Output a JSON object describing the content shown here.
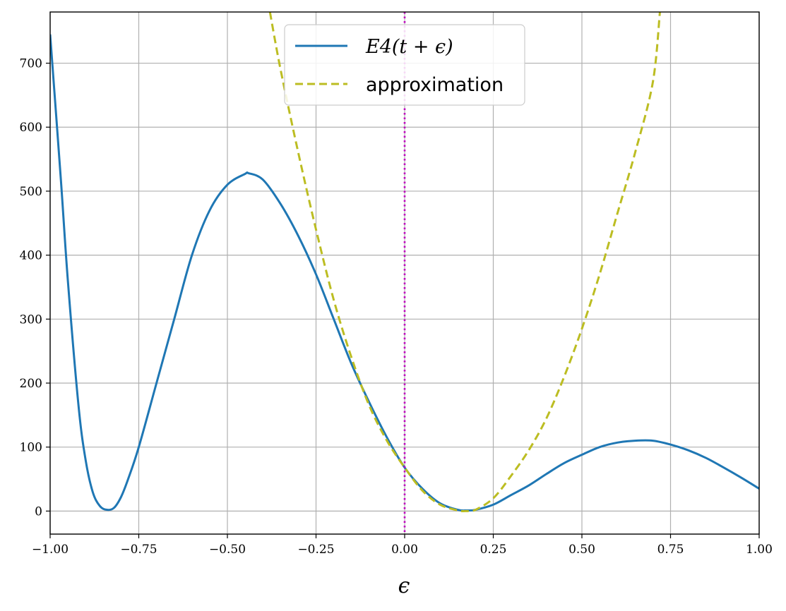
{
  "chart_data": {
    "type": "line",
    "title": "",
    "xlabel": "ϵ",
    "ylabel": "",
    "xlim": [
      -1.0,
      1.0
    ],
    "ylim": [
      -36,
      780
    ],
    "grid": true,
    "legend_position": "top-center",
    "x_ticks": [
      -1.0,
      -0.75,
      -0.5,
      -0.25,
      0.0,
      0.25,
      0.5,
      0.75,
      1.0
    ],
    "x_tick_labels": [
      "−1.00",
      "−0.75",
      "−0.50",
      "−0.25",
      "0.00",
      "0.25",
      "0.50",
      "0.75",
      "1.00"
    ],
    "y_ticks": [
      0,
      100,
      200,
      300,
      400,
      500,
      600,
      700
    ],
    "y_tick_labels": [
      "0",
      "100",
      "200",
      "300",
      "400",
      "500",
      "600",
      "700"
    ],
    "vertical_line": {
      "x": 0.0,
      "color": "#bf00bf",
      "style": "dotted"
    },
    "series": [
      {
        "name": "E4(t + ϵ)",
        "style": "solid",
        "color": "#1f77b4",
        "points": [
          [
            -1.0,
            745
          ],
          [
            -0.97,
            520
          ],
          [
            -0.95,
            360
          ],
          [
            -0.92,
            165
          ],
          [
            -0.9,
            80
          ],
          [
            -0.88,
            30
          ],
          [
            -0.86,
            8
          ],
          [
            -0.84,
            2
          ],
          [
            -0.82,
            5
          ],
          [
            -0.8,
            22
          ],
          [
            -0.78,
            50
          ],
          [
            -0.75,
            100
          ],
          [
            -0.7,
            200
          ],
          [
            -0.65,
            300
          ],
          [
            -0.6,
            400
          ],
          [
            -0.55,
            470
          ],
          [
            -0.5,
            510
          ],
          [
            -0.45,
            527
          ],
          [
            -0.44,
            528
          ],
          [
            -0.4,
            518
          ],
          [
            -0.35,
            480
          ],
          [
            -0.3,
            430
          ],
          [
            -0.25,
            370
          ],
          [
            -0.2,
            300
          ],
          [
            -0.15,
            230
          ],
          [
            -0.1,
            170
          ],
          [
            -0.05,
            115
          ],
          [
            0.0,
            68
          ],
          [
            0.05,
            35
          ],
          [
            0.1,
            12
          ],
          [
            0.15,
            2
          ],
          [
            0.175,
            1
          ],
          [
            0.2,
            2
          ],
          [
            0.25,
            10
          ],
          [
            0.3,
            25
          ],
          [
            0.35,
            40
          ],
          [
            0.4,
            58
          ],
          [
            0.45,
            75
          ],
          [
            0.5,
            88
          ],
          [
            0.55,
            100
          ],
          [
            0.6,
            107
          ],
          [
            0.65,
            110
          ],
          [
            0.7,
            110
          ],
          [
            0.75,
            104
          ],
          [
            0.8,
            95
          ],
          [
            0.85,
            83
          ],
          [
            0.9,
            68
          ],
          [
            0.95,
            52
          ],
          [
            1.0,
            35
          ]
        ]
      },
      {
        "name": "approximation",
        "style": "dashed",
        "color": "#bcbd22",
        "points": [
          [
            -0.38,
            780
          ],
          [
            -0.35,
            690
          ],
          [
            -0.3,
            560
          ],
          [
            -0.25,
            440
          ],
          [
            -0.2,
            330
          ],
          [
            -0.15,
            240
          ],
          [
            -0.1,
            165
          ],
          [
            -0.05,
            110
          ],
          [
            0.0,
            68
          ],
          [
            0.05,
            32
          ],
          [
            0.1,
            10
          ],
          [
            0.15,
            1
          ],
          [
            0.175,
            0
          ],
          [
            0.2,
            2
          ],
          [
            0.25,
            20
          ],
          [
            0.3,
            55
          ],
          [
            0.35,
            95
          ],
          [
            0.4,
            145
          ],
          [
            0.45,
            210
          ],
          [
            0.5,
            285
          ],
          [
            0.55,
            370
          ],
          [
            0.6,
            465
          ],
          [
            0.65,
            560
          ],
          [
            0.7,
            670
          ],
          [
            0.72,
            780
          ]
        ]
      }
    ]
  }
}
